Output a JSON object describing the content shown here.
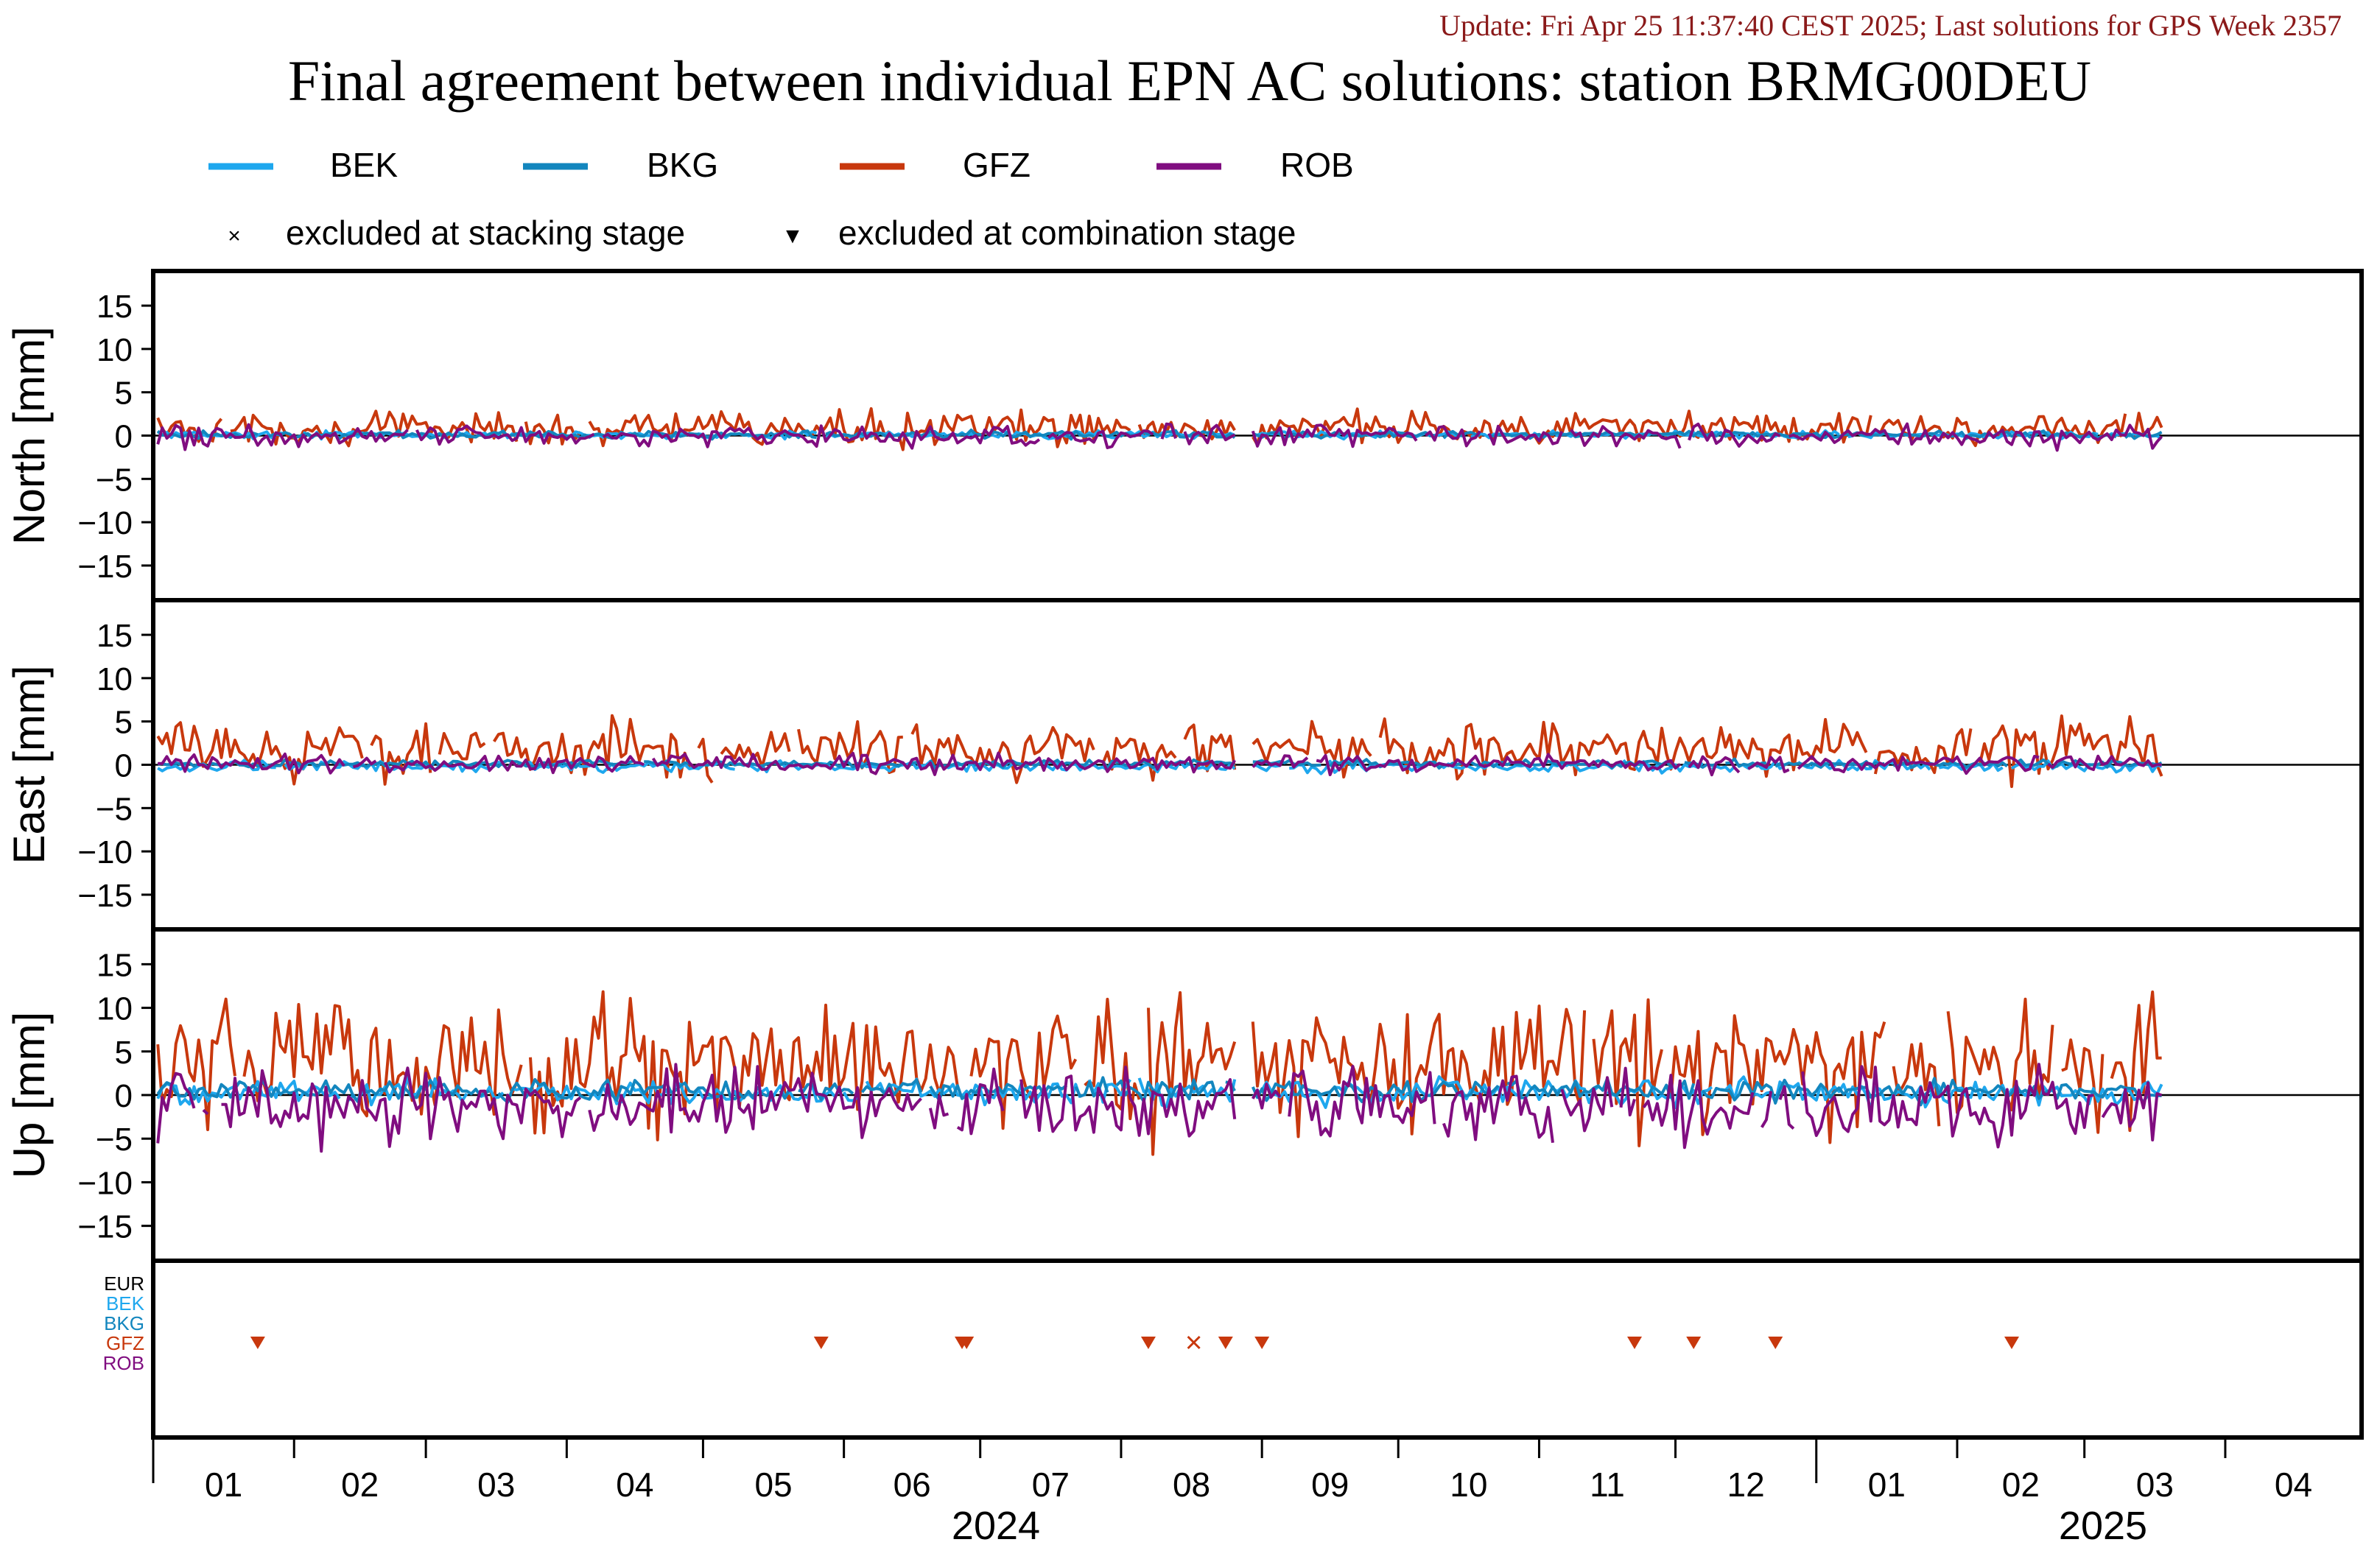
{
  "update_text": "Update: Fri Apr 25 11:37:40 CEST 2025; Last solutions for GPS Week 2357",
  "title": "Final agreement between individual EPN AC solutions: station BRMG00DEU",
  "legend": {
    "series": [
      {
        "name": "BEK",
        "color": "#1ea7ee"
      },
      {
        "name": "BKG",
        "color": "#1386be"
      },
      {
        "name": "GFZ",
        "color": "#c8380d"
      },
      {
        "name": "ROB",
        "color": "#800d80"
      }
    ],
    "markers": [
      {
        "symbol": "×",
        "label": "excluded at stacking stage"
      },
      {
        "symbol": "▼",
        "label": "excluded at combination stage"
      }
    ]
  },
  "chart_data": {
    "type": "line",
    "x_axis": {
      "months": [
        "01",
        "02",
        "03",
        "04",
        "05",
        "06",
        "07",
        "08",
        "09",
        "10",
        "11",
        "12",
        "01",
        "02",
        "03",
        "04"
      ],
      "years": [
        "2024",
        "2025"
      ],
      "range": [
        "2024-01-01",
        "2025-04-30"
      ]
    },
    "y_ticks": [
      15,
      10,
      5,
      0,
      -5,
      -10,
      -15
    ],
    "y_range": [
      -19,
      19
    ],
    "panels": [
      {
        "ylabel": "North [mm]",
        "gap": [
          "2024-08-27",
          "2024-08-29"
        ],
        "series": [
          {
            "name": "GFZ",
            "mean": 0.8,
            "amp": 0.9
          },
          {
            "name": "BEK",
            "mean": 0.1,
            "amp": 0.2
          },
          {
            "name": "BKG",
            "mean": 0.1,
            "amp": 0.2
          },
          {
            "name": "ROB",
            "mean": -0.1,
            "amp": 0.6
          }
        ]
      },
      {
        "ylabel": "East [mm]",
        "gap": [
          "2024-08-27",
          "2024-08-29"
        ],
        "series": [
          {
            "name": "GFZ",
            "mean": 1.8,
            "amp": 1.5
          },
          {
            "name": "BEK",
            "mean": -0.2,
            "amp": 0.3
          },
          {
            "name": "BKG",
            "mean": 0.1,
            "amp": 0.2
          },
          {
            "name": "ROB",
            "mean": 0.1,
            "amp": 0.5
          }
        ]
      },
      {
        "ylabel": "Up [mm]",
        "gap": [
          "2024-08-27",
          "2024-08-29"
        ],
        "series": [
          {
            "name": "GFZ",
            "mean": 3.5,
            "amp": 3.8
          },
          {
            "name": "BEK",
            "mean": 0.3,
            "amp": 0.7
          },
          {
            "name": "BKG",
            "mean": 0.5,
            "amp": 0.6
          },
          {
            "name": "ROB",
            "mean": -1.2,
            "amp": 1.9
          }
        ]
      }
    ],
    "exclusion_panel": {
      "rows": [
        {
          "name": "EUR",
          "color": "#000000"
        },
        {
          "name": "BEK",
          "color": "#1ea7ee"
        },
        {
          "name": "BKG",
          "color": "#1386be"
        },
        {
          "name": "GFZ",
          "color": "#c8380d"
        },
        {
          "name": "ROB",
          "color": "#800d80"
        }
      ],
      "combination_exclusions": {
        "row": "GFZ",
        "dates": [
          "2024-01-24",
          "2024-05-27",
          "2024-06-27",
          "2024-06-28",
          "2024-08-07",
          "2024-08-24",
          "2024-09-01",
          "2024-11-22",
          "2024-12-05",
          "2024-12-23",
          "2025-02-13"
        ]
      },
      "stacking_exclusions": {
        "row": "GFZ",
        "dates": [
          "2024-08-17"
        ]
      }
    }
  }
}
